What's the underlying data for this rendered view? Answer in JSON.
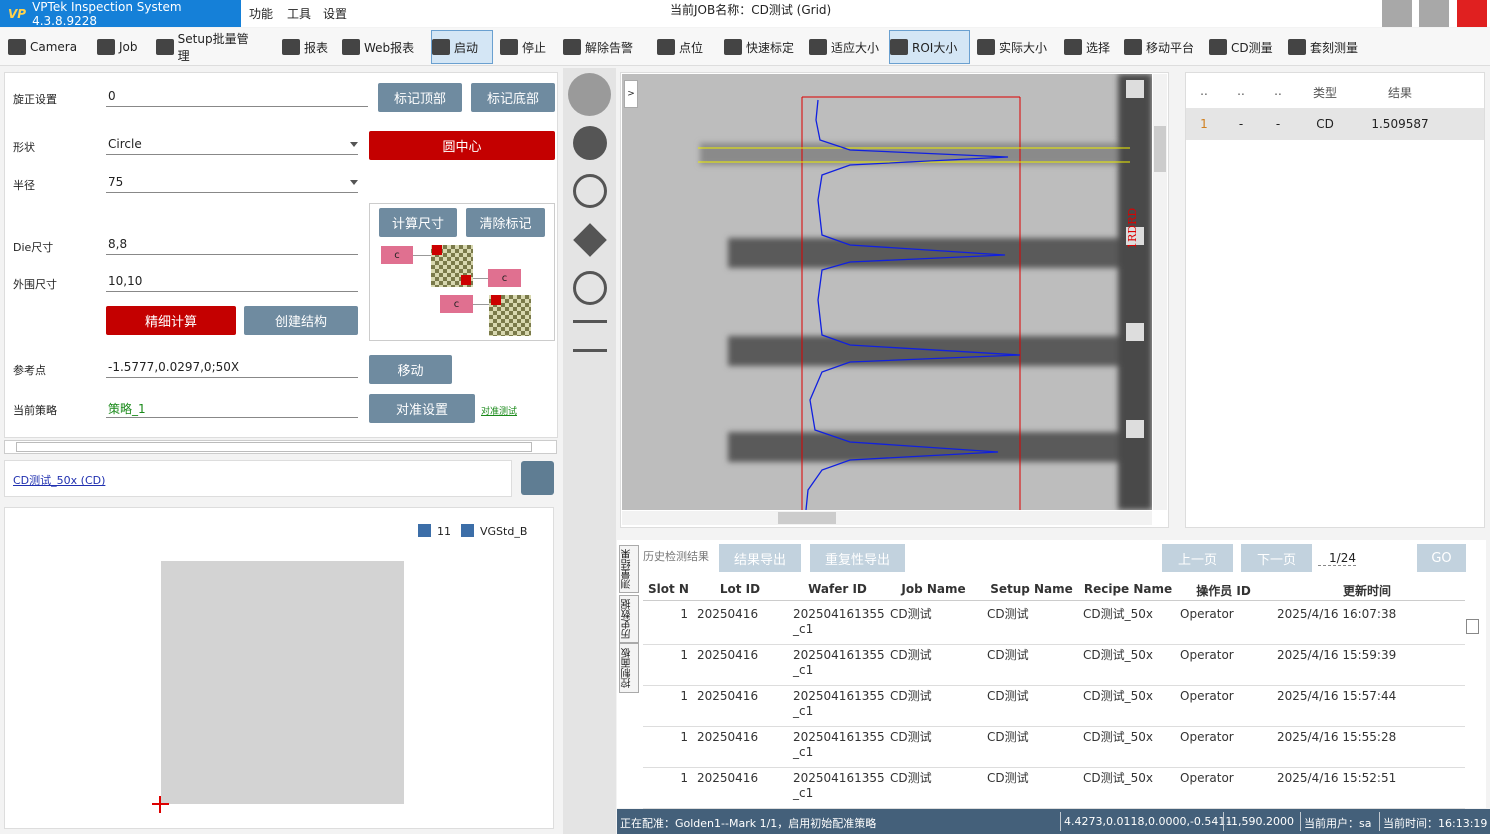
{
  "title_bar": {
    "app_title": "VPTek Inspection System 4.3.8.9228",
    "menus": [
      "功能",
      "工具",
      "设置"
    ],
    "job_name": "当前JOB名称：CD测试 (Grid)"
  },
  "toolbar": [
    "Camera",
    "Job",
    "Setup批量管理",
    "报表",
    "Web报表",
    "启动",
    "停止",
    "解除告警",
    "点位",
    "快速标定",
    "适应大小",
    "ROI大小",
    "实际大小",
    "选择",
    "移动平台",
    "CD测量",
    "套刻测量"
  ],
  "settings": {
    "fields": [
      {
        "label": "旋正设置",
        "value": "0"
      },
      {
        "label": "形状",
        "value": "Circle"
      },
      {
        "label": "半径",
        "value": "75"
      },
      {
        "label": "Die尺寸",
        "value": "8,8"
      },
      {
        "label": "外围尺寸",
        "value": "10,10"
      },
      {
        "label": "参考点",
        "value": "-1.5777,0.0297,0;50X"
      },
      {
        "label": "当前策略",
        "value": "策略_1"
      }
    ],
    "buttons": {
      "mark_top": "标记顶部",
      "mark_bottom": "标记底部",
      "circle_center": "圆中心",
      "calc_size": "计算尺寸",
      "clear_marks": "清除标记",
      "fine_calc": "精细计算",
      "create_structure": "创建结构",
      "move": "移动",
      "align_settings": "对准设置",
      "align_test": "对准测试"
    },
    "marker_label": "c"
  },
  "recipe_link": "CD测试_50x (CD)",
  "checkboxes": [
    "11",
    "VGStd_B"
  ],
  "image": {
    "side_label": "1RDRD"
  },
  "results": {
    "headers": [
      "..",
      "..",
      "..",
      "类型",
      "结果"
    ],
    "rows": [
      [
        "1",
        "-",
        "-",
        "CD",
        "1.509587"
      ]
    ]
  },
  "history": {
    "tabs": [
      "测量结果",
      "历史数据",
      "控制面板"
    ],
    "title": "历史检测结果",
    "buttons": [
      "结果导出",
      "重复性导出",
      "上一页",
      "下一页",
      "GO"
    ],
    "page": "1/24",
    "headers": [
      "Slot N",
      "Lot ID",
      "Wafer ID",
      "Job Name",
      "Setup Name",
      "Recipe Name",
      "操作员 ID",
      "更新时间"
    ],
    "rows": [
      [
        "1",
        "20250416",
        "202504161355_c1",
        "CD测试",
        "CD测试",
        "CD测试_50x",
        "Operator",
        "2025/4/16 16:07:38"
      ],
      [
        "1",
        "20250416",
        "202504161355_c1",
        "CD测试",
        "CD测试",
        "CD测试_50x",
        "Operator",
        "2025/4/16 15:59:39"
      ],
      [
        "1",
        "20250416",
        "202504161355_c1",
        "CD测试",
        "CD测试",
        "CD测试_50x",
        "Operator",
        "2025/4/16 15:57:44"
      ],
      [
        "1",
        "20250416",
        "202504161355_c1",
        "CD测试",
        "CD测试",
        "CD测试_50x",
        "Operator",
        "2025/4/16 15:55:28"
      ],
      [
        "1",
        "20250416",
        "202504161355_c1",
        "CD测试",
        "CD测试",
        "CD测试_50x",
        "Operator",
        "2025/4/16 15:52:51"
      ]
    ]
  },
  "status_bar": [
    "正在配准：Golden1--Mark 1/1，启用初始配准策略",
    "4.4273,0.0118,0.0000,-0.5411",
    "-1,590.2000",
    "当前用户：sa",
    "当前时间：16:13:19"
  ]
}
